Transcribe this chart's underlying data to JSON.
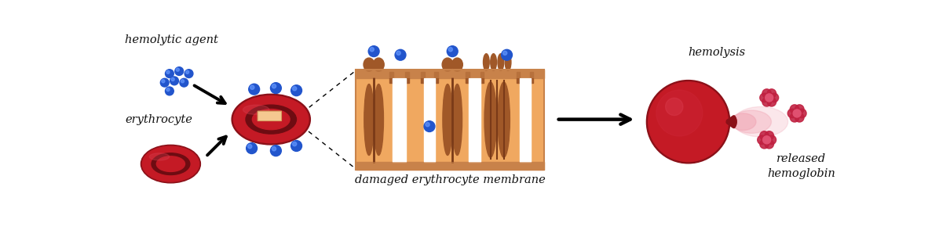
{
  "bg_color": "#ffffff",
  "text_color": "#111111",
  "rbc_outer": "#8b1018",
  "rbc_main": "#c41a25",
  "rbc_inner_dark": "#6e0c12",
  "rbc_highlight": "#d94455",
  "blue_dot": "#2255cc",
  "blue_dot_hl": "#6699ff",
  "mem_bg": "#f0a860",
  "mem_stripe_top": "#c8824a",
  "mem_stripe_bot": "#c8824a",
  "mem_protein_fill": "#a05828",
  "mem_protein_dark": "#7a3a18",
  "mem_protein_mid": "#c07840",
  "hemo_color": "#c02040",
  "hemo_light": "#e05070",
  "pink_spray": "#f0a0b0",
  "label_hemolytic": "hemolytic agent",
  "label_erythrocyte": "erythrocyte",
  "label_membrane": "damaged erythrocyte membrane",
  "label_hemolysis": "hemolysis",
  "label_released": "released\nhemoglobin",
  "figw": 12.1,
  "figh": 3.03,
  "dpi": 100
}
